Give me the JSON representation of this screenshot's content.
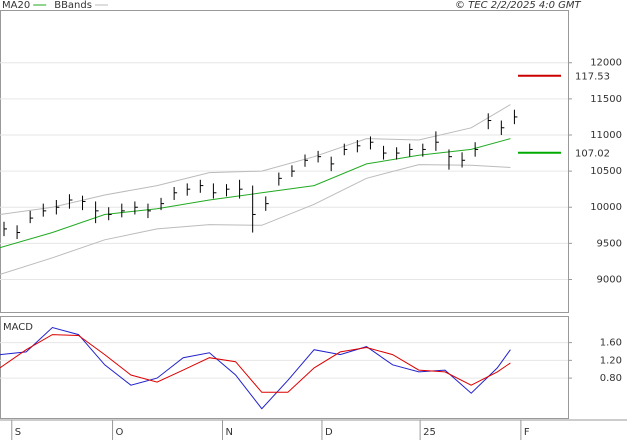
{
  "chart_data": [
    {
      "type": "ohlc",
      "source": "© TEC 2/2/2025 4:0 GMT",
      "x": [
        0,
        1,
        2,
        3,
        4,
        5,
        6,
        7,
        8,
        9,
        10,
        11,
        12,
        13,
        14,
        15,
        16,
        17,
        18,
        19,
        20,
        21,
        22,
        23,
        24,
        25,
        26,
        27,
        28,
        29,
        30,
        31,
        32,
        33,
        34,
        35,
        36,
        37,
        38,
        39
      ],
      "high": [
        9800,
        9750,
        9950,
        10050,
        10100,
        10180,
        10160,
        10080,
        10000,
        10050,
        10080,
        10050,
        10130,
        10280,
        10330,
        10380,
        10330,
        10320,
        10380,
        10300,
        10150,
        10480,
        10580,
        10730,
        10780,
        10700,
        10880,
        10930,
        10980,
        10850,
        10830,
        10880,
        10880,
        11050,
        10800,
        10760,
        10900,
        11300,
        11200,
        11350
      ],
      "low": [
        9600,
        9560,
        9780,
        9870,
        9900,
        9980,
        9960,
        9780,
        9820,
        9860,
        9900,
        9850,
        9960,
        10100,
        10160,
        10200,
        10120,
        10150,
        10120,
        9650,
        9950,
        10300,
        10420,
        10560,
        10620,
        10500,
        10720,
        10760,
        10800,
        10660,
        10660,
        10700,
        10700,
        10780,
        10520,
        10550,
        10700,
        11080,
        11000,
        11150
      ],
      "close": [
        9700,
        9650,
        9850,
        9950,
        10000,
        10100,
        10080,
        9950,
        9900,
        9950,
        10000,
        9950,
        10050,
        10200,
        10250,
        10300,
        10200,
        10250,
        10250,
        9900,
        10050,
        10400,
        10500,
        10650,
        10700,
        10600,
        10800,
        10850,
        10900,
        10750,
        10750,
        10800,
        10800,
        10900,
        10700,
        10650,
        10800,
        11200,
        11100,
        11250
      ],
      "color": "#000000",
      "series": [
        {
          "name": "MA20",
          "color": "#22aa22",
          "x": [
            0,
            4,
            8,
            12,
            16,
            20,
            24,
            28,
            32,
            36,
            39
          ],
          "values": [
            9440,
            9650,
            9900,
            9980,
            10100,
            10200,
            10300,
            10600,
            10720,
            10800,
            10950
          ]
        },
        {
          "name": "BBands",
          "color": "#bbbbbb",
          "x": [
            0,
            4,
            8,
            12,
            16,
            20,
            24,
            28,
            32,
            36,
            39
          ],
          "values": [
            9900,
            10000,
            10170,
            10300,
            10480,
            10500,
            10700,
            10950,
            10930,
            11100,
            11420
          ],
          "lower": [
            9070,
            9300,
            9550,
            9700,
            9760,
            9750,
            10040,
            10400,
            10590,
            10580,
            10550
          ]
        }
      ],
      "annotations": [
        {
          "text": "117.53",
          "y": 11820,
          "color": "#cc0000"
        },
        {
          "text": "107.02",
          "y": 10755,
          "color": "#00aa00"
        }
      ],
      "xlim": [
        0,
        43.4
      ],
      "ylim": [
        8550,
        12730
      ],
      "yticks": [
        9000,
        9500,
        10000,
        10500,
        11000,
        11500,
        12000
      ],
      "grid": true
    },
    {
      "type": "line",
      "title": "MACD",
      "x": [
        0,
        2,
        4,
        6,
        8,
        10,
        12,
        14,
        16,
        18,
        20,
        22,
        24,
        26,
        28,
        30,
        32,
        34,
        36,
        38,
        39
      ],
      "series": [
        {
          "color": "#2222cc",
          "values": [
            1.33,
            1.39,
            1.94,
            1.78,
            1.1,
            0.64,
            0.8,
            1.26,
            1.37,
            0.87,
            0.11,
            0.75,
            1.44,
            1.33,
            1.51,
            1.1,
            0.94,
            0.98,
            0.46,
            1.03,
            1.44
          ]
        },
        {
          "color": "#dd0000",
          "values": [
            1.03,
            1.44,
            1.78,
            1.76,
            1.33,
            0.87,
            0.71,
            0.98,
            1.26,
            1.17,
            0.48,
            0.48,
            1.03,
            1.39,
            1.49,
            1.33,
            0.98,
            0.94,
            0.64,
            0.94,
            1.14
          ]
        }
      ],
      "xlim": [
        0,
        43.4
      ],
      "ylim": [
        -0.1,
        2.2
      ],
      "yticks": [
        {
          "value": 0.8,
          "label": "0.80"
        },
        {
          "value": 1.2,
          "label": "1.20"
        },
        {
          "value": 1.6,
          "label": "1.60"
        }
      ],
      "xticks": [
        {
          "value": 0.9,
          "label": "S"
        },
        {
          "value": 8.6,
          "label": "O"
        },
        {
          "value": 17,
          "label": "N"
        },
        {
          "value": 24.6,
          "label": "D"
        },
        {
          "value": 32.1,
          "label": "25"
        },
        {
          "value": 39.8,
          "label": "F"
        }
      ],
      "grid": true
    }
  ]
}
